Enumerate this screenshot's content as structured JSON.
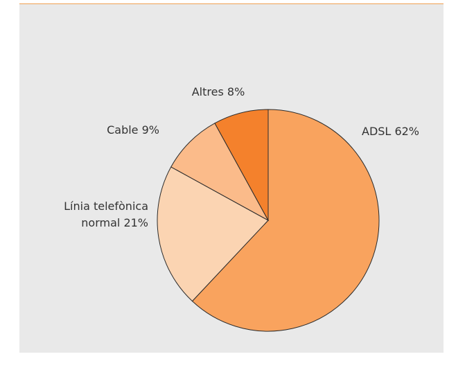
{
  "chart_data": {
    "type": "pie",
    "categories": [
      "ADSL",
      "Línia telefònica normal",
      "Cable",
      "Altres"
    ],
    "values": [
      62,
      21,
      9,
      8
    ],
    "value_labels": [
      "62%",
      "21%",
      "9%",
      "8%"
    ],
    "colors": [
      "#f9a35e",
      "#fbd4b2",
      "#fbbb8a",
      "#f4812c"
    ]
  }
}
